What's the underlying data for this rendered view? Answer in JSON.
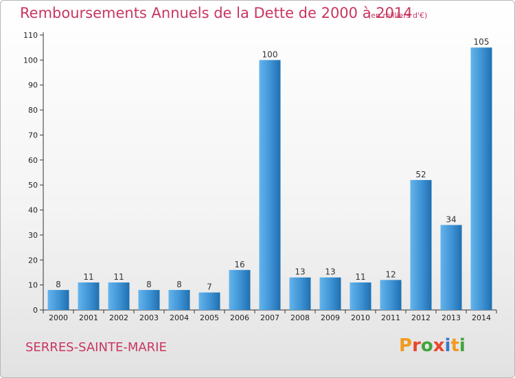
{
  "header": {
    "title": "Remboursements Annuels de la Dette de 2000 à 2014",
    "unit_note": "(en milliers d'€)"
  },
  "footer": {
    "commune": "SERRES-SAINTE-MARIE",
    "logo": "Proxiti"
  },
  "colors": {
    "bar_light": "#5fb0ea",
    "bar_dark": "#1f73b5",
    "title": "#c8365f",
    "axis": "#333333",
    "logo_letters": [
      "#f29a1f",
      "#e8452c",
      "#3fa53a",
      "#e8452c",
      "#3a79c8",
      "#f29a1f",
      "#3fa53a"
    ]
  },
  "chart_data": {
    "type": "bar",
    "categories": [
      "2000",
      "2001",
      "2002",
      "2003",
      "2004",
      "2005",
      "2006",
      "2007",
      "2008",
      "2009",
      "2010",
      "2011",
      "2012",
      "2013",
      "2014"
    ],
    "values": [
      8,
      11,
      11,
      8,
      8,
      7,
      16,
      100,
      13,
      13,
      11,
      12,
      52,
      34,
      105
    ],
    "data_labels": [
      "8",
      "11",
      "11",
      "8",
      "8",
      "7",
      "16",
      "100",
      "13",
      "13",
      "11",
      "12",
      "52",
      "34",
      "105"
    ],
    "y_ticks": [
      0,
      10,
      20,
      30,
      40,
      50,
      60,
      70,
      80,
      90,
      100,
      110
    ],
    "ylim": [
      0,
      110
    ],
    "grid": false,
    "legend": "none"
  }
}
